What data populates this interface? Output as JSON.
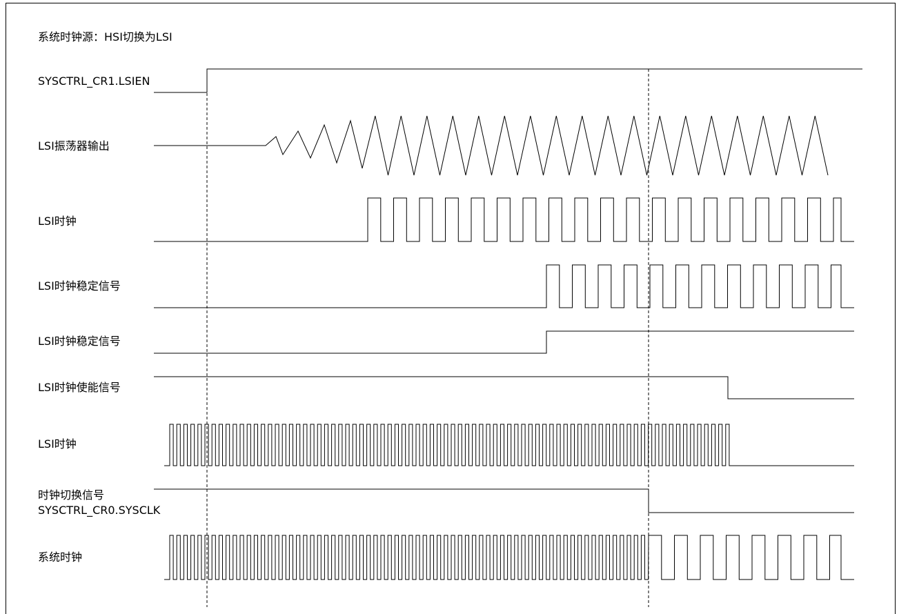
{
  "diagram": {
    "title": "系统时钟源：HSI切换为LSI",
    "signals": [
      {
        "id": "lsien",
        "label": "SYSCTRL_CR1.LSIEN"
      },
      {
        "id": "osc",
        "label": "LSI振荡器输出"
      },
      {
        "id": "lsiclk",
        "label": "LSI时钟"
      },
      {
        "id": "stable_clk",
        "label": "LSI时钟稳定信号"
      },
      {
        "id": "stable",
        "label": "LSI时钟稳定信号"
      },
      {
        "id": "enable",
        "label": "LSI时钟使能信号"
      },
      {
        "id": "hsiclk",
        "label": "LSI时钟"
      },
      {
        "id": "switch",
        "label": "时钟切换信号",
        "label2": "SYSCTRL_CR0.SYSCLK"
      },
      {
        "id": "sysclk",
        "label": "系统时钟"
      }
    ]
  }
}
